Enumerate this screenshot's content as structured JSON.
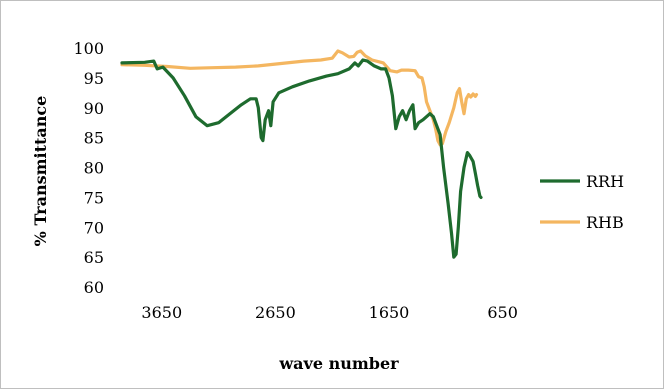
{
  "chart_data": {
    "type": "line",
    "title": "",
    "xlabel": "wave number",
    "ylabel": "% Transmittance",
    "x_reversed": true,
    "xlim": [
      4000,
      550
    ],
    "ylim": [
      60,
      100
    ],
    "x_ticks": [
      3650,
      2650,
      1650,
      650
    ],
    "y_ticks": [
      60,
      65,
      70,
      75,
      80,
      85,
      90,
      95,
      100
    ],
    "grid": false,
    "legend_position": "right",
    "series": [
      {
        "name": "RRH",
        "color": "#1e6b2e",
        "points": [
          [
            4000,
            97.5
          ],
          [
            3800,
            97.6
          ],
          [
            3720,
            97.8
          ],
          [
            3690,
            96.5
          ],
          [
            3640,
            96.8
          ],
          [
            3550,
            95
          ],
          [
            3450,
            92
          ],
          [
            3350,
            88.5
          ],
          [
            3250,
            87
          ],
          [
            3150,
            87.5
          ],
          [
            3050,
            89
          ],
          [
            2950,
            90.5
          ],
          [
            2870,
            91.5
          ],
          [
            2820,
            91.5
          ],
          [
            2800,
            90
          ],
          [
            2775,
            85
          ],
          [
            2760,
            84.5
          ],
          [
            2740,
            88
          ],
          [
            2710,
            89.5
          ],
          [
            2690,
            87
          ],
          [
            2670,
            91
          ],
          [
            2620,
            92.5
          ],
          [
            2500,
            93.5
          ],
          [
            2350,
            94.5
          ],
          [
            2200,
            95.3
          ],
          [
            2100,
            95.7
          ],
          [
            2000,
            96.5
          ],
          [
            1950,
            97.5
          ],
          [
            1920,
            97
          ],
          [
            1880,
            98
          ],
          [
            1840,
            97.8
          ],
          [
            1780,
            97
          ],
          [
            1720,
            96.5
          ],
          [
            1680,
            96.5
          ],
          [
            1650,
            95
          ],
          [
            1620,
            92
          ],
          [
            1590,
            86.5
          ],
          [
            1560,
            88.5
          ],
          [
            1530,
            89.5
          ],
          [
            1500,
            88
          ],
          [
            1470,
            89.5
          ],
          [
            1440,
            90.5
          ],
          [
            1420,
            86.5
          ],
          [
            1390,
            87.5
          ],
          [
            1350,
            88
          ],
          [
            1320,
            88.5
          ],
          [
            1290,
            89
          ],
          [
            1260,
            88.5
          ],
          [
            1230,
            87
          ],
          [
            1200,
            85.5
          ],
          [
            1170,
            80
          ],
          [
            1130,
            74
          ],
          [
            1100,
            69
          ],
          [
            1080,
            65
          ],
          [
            1060,
            65.5
          ],
          [
            1040,
            70
          ],
          [
            1020,
            76
          ],
          [
            990,
            80
          ],
          [
            960,
            82.5
          ],
          [
            940,
            82
          ],
          [
            910,
            81
          ],
          [
            890,
            79
          ],
          [
            870,
            77
          ],
          [
            850,
            75.2
          ],
          [
            840,
            75
          ]
        ]
      },
      {
        "name": "RHB",
        "color": "#f4b660",
        "points": [
          [
            4000,
            97.2
          ],
          [
            3800,
            97.1
          ],
          [
            3600,
            96.9
          ],
          [
            3400,
            96.6
          ],
          [
            3200,
            96.7
          ],
          [
            3000,
            96.8
          ],
          [
            2800,
            97
          ],
          [
            2600,
            97.4
          ],
          [
            2400,
            97.8
          ],
          [
            2250,
            98
          ],
          [
            2150,
            98.3
          ],
          [
            2100,
            99.5
          ],
          [
            2060,
            99.2
          ],
          [
            2000,
            98.5
          ],
          [
            1960,
            98.6
          ],
          [
            1930,
            99.3
          ],
          [
            1900,
            99.5
          ],
          [
            1860,
            98.7
          ],
          [
            1800,
            98
          ],
          [
            1700,
            97.5
          ],
          [
            1640,
            96.2
          ],
          [
            1580,
            96
          ],
          [
            1540,
            96.3
          ],
          [
            1480,
            96.3
          ],
          [
            1420,
            96.2
          ],
          [
            1390,
            95.2
          ],
          [
            1360,
            95
          ],
          [
            1340,
            93.5
          ],
          [
            1320,
            91
          ],
          [
            1290,
            89.5
          ],
          [
            1260,
            88
          ],
          [
            1240,
            86.5
          ],
          [
            1220,
            84.5
          ],
          [
            1200,
            83.8
          ],
          [
            1180,
            84
          ],
          [
            1150,
            86
          ],
          [
            1120,
            87.5
          ],
          [
            1080,
            90
          ],
          [
            1050,
            92.5
          ],
          [
            1030,
            93.2
          ],
          [
            1010,
            91
          ],
          [
            990,
            89
          ],
          [
            970,
            91.5
          ],
          [
            950,
            92.2
          ],
          [
            930,
            91.8
          ],
          [
            910,
            92.3
          ],
          [
            890,
            91.9
          ],
          [
            880,
            92.2
          ]
        ]
      }
    ]
  }
}
